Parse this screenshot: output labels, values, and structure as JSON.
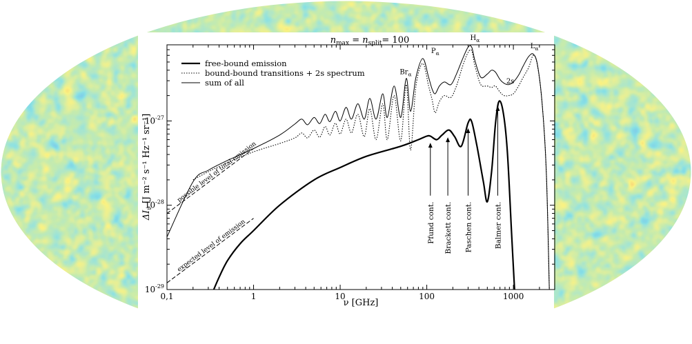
{
  "background": {
    "description_colors": [
      "#1f3fbf",
      "#2e86d6",
      "#3fc0c8",
      "#8fd36a",
      "#f2e33a",
      "#f08a2a",
      "#d22b1f"
    ]
  },
  "chart_data": {
    "type": "line",
    "title": {
      "n_max": "max",
      "n_split": "split",
      "value": "= 100"
    },
    "xlabel": "ν  [GHz]",
    "ylabel": {
      "symbol": "ΔI",
      "sub": "ν",
      "units": "[J m⁻² s⁻¹ Hz⁻¹ sr⁻¹]"
    },
    "xscale": "log",
    "yscale": "log",
    "xlim": [
      0.1,
      3000
    ],
    "ylim": [
      1e-29,
      8e-27
    ],
    "x_ticks": [
      {
        "value": 0.1,
        "label": "0,1"
      },
      {
        "value": 1,
        "label": "1"
      },
      {
        "value": 10,
        "label": "10"
      },
      {
        "value": 100,
        "label": "100"
      },
      {
        "value": 1000,
        "label": "1000"
      }
    ],
    "y_ticks": [
      {
        "value": 1e-29,
        "base": "10",
        "exp": "-29"
      },
      {
        "value": 1e-28,
        "base": "10",
        "exp": "-28"
      },
      {
        "value": 1e-27,
        "base": "10",
        "exp": "-27"
      }
    ],
    "legend": {
      "position": "top-left",
      "entries": [
        {
          "label": "free-bound emission",
          "style": "thick"
        },
        {
          "label": "bound-bound transitions + 2s spectrum",
          "style": "dotted"
        },
        {
          "label": "sum of all",
          "style": "thin"
        }
      ]
    },
    "series": [
      {
        "name": "free-bound emission",
        "style": "thick",
        "x": [
          0.3,
          0.4,
          0.5,
          0.7,
          1,
          2,
          5,
          10,
          20,
          50,
          80,
          100,
          110,
          130,
          150,
          180,
          210,
          250,
          300,
          330,
          380,
          450,
          500,
          560,
          620,
          680,
          760,
          850,
          950,
          1050
        ],
        "y": [
          7e-30,
          1.4e-29,
          2.2e-29,
          3.5e-29,
          5e-29,
          1e-28,
          2e-28,
          2.8e-28,
          3.8e-28,
          5e-28,
          6e-28,
          6.6e-28,
          6.6e-28,
          6e-28,
          6.8e-28,
          7.8e-28,
          6.5e-28,
          5e-28,
          9.5e-28,
          9.8e-28,
          5e-28,
          1.9e-28,
          1.1e-28,
          2.5e-28,
          9e-28,
          1.7e-27,
          1.3e-27,
          4.5e-28,
          5e-29,
          7e-30
        ]
      },
      {
        "name": "bound-bound transitions + 2s spectrum",
        "style": "dotted",
        "x": [
          0.2,
          0.3,
          0.5,
          1,
          2,
          3,
          3.6,
          4.2,
          5,
          5.8,
          6.7,
          7.6,
          8.8,
          10,
          11.7,
          13.5,
          16,
          19,
          22,
          26,
          31,
          35,
          42,
          50,
          58,
          65,
          75,
          90,
          105,
          115,
          125,
          140,
          160,
          190,
          220,
          260,
          300,
          330,
          360,
          420,
          500,
          560,
          620,
          700,
          780,
          880,
          1000,
          1150,
          1300,
          1500,
          1700,
          1900,
          2150,
          2400,
          2600
        ],
        "y": [
          2e-28,
          2.5e-28,
          3.2e-28,
          4.3e-28,
          5.4e-28,
          6.3e-28,
          7.2e-28,
          6.3e-28,
          7.8e-28,
          6.4e-28,
          8.6e-28,
          6.8e-28,
          9.4e-28,
          7e-28,
          1.05e-27,
          7.2e-28,
          1.2e-27,
          6.5e-28,
          1.4e-27,
          6e-28,
          1.6e-27,
          6e-28,
          2e-27,
          5.8e-28,
          2.7e-27,
          4.5e-28,
          2.6e-27,
          4.8e-27,
          2.6e-27,
          1.8e-27,
          1.25e-27,
          1.7e-27,
          2e-27,
          1.9e-27,
          2.6e-27,
          4.5e-27,
          6.5e-27,
          6.8e-27,
          4.5e-27,
          2.7e-27,
          2.6e-27,
          2.5e-27,
          2.6e-27,
          2.2e-27,
          2e-27,
          2e-27,
          2.1e-27,
          2.6e-27,
          3.3e-27,
          4.3e-27,
          6e-27,
          4.5e-27,
          1.6e-27,
          2.5e-28,
          1e-29
        ]
      },
      {
        "name": "sum of all",
        "style": "thin",
        "x": [
          0.1,
          0.2,
          0.3,
          0.5,
          1,
          2,
          3,
          3.6,
          4.2,
          5,
          5.8,
          6.7,
          7.6,
          8.8,
          10,
          11.7,
          13.5,
          16,
          19,
          22,
          26,
          31,
          35,
          42,
          50,
          58,
          65,
          75,
          90,
          105,
          115,
          125,
          140,
          160,
          190,
          220,
          260,
          300,
          330,
          360,
          420,
          500,
          560,
          620,
          700,
          780,
          880,
          1000,
          1150,
          1300,
          1500,
          1700,
          1900,
          2150,
          2400,
          2600
        ],
        "y": [
          4.2e-29,
          1.9e-28,
          2.6e-28,
          3.4e-28,
          4.7e-28,
          6.8e-28,
          9.2e-28,
          1.05e-27,
          9e-28,
          1.1e-27,
          9.3e-28,
          1.2e-27,
          9.8e-28,
          1.3e-27,
          1e-27,
          1.45e-27,
          1.05e-27,
          1.6e-27,
          1.05e-27,
          1.85e-27,
          1.05e-27,
          2.1e-27,
          1.1e-27,
          2.6e-27,
          1.1e-27,
          3.2e-27,
          1.3e-27,
          3.3e-27,
          5.5e-27,
          3.3e-27,
          2.4e-27,
          2.1e-27,
          2.6e-27,
          2.9e-27,
          2.7e-27,
          3.6e-27,
          5.5e-27,
          7.5e-27,
          7.5e-27,
          5.2e-27,
          3.3e-27,
          3.6e-27,
          4e-27,
          3.8e-27,
          3.1e-27,
          2.8e-27,
          2.7e-27,
          2.9e-27,
          3.5e-27,
          4.5e-27,
          5.8e-27,
          6.2e-27,
          4.6e-27,
          1.6e-27,
          2.5e-28,
          1e-29
        ]
      },
      {
        "name": "possible level of total emission",
        "style": "dashed",
        "x": [
          0.1,
          1
        ],
        "y": [
          8e-29,
          4.7e-28
        ]
      },
      {
        "name": "expected level of emission",
        "style": "dashed",
        "x": [
          0.1,
          1
        ],
        "y": [
          1.2e-29,
          7e-29
        ]
      }
    ],
    "peak_labels": [
      {
        "main": "Br",
        "sub": "α",
        "x": 57,
        "y": 3.6e-27
      },
      {
        "main": "P",
        "sub": "α",
        "x": 125,
        "y": 6.4e-27
      },
      {
        "main": "H",
        "sub": "α",
        "x": 360,
        "y": 9.1e-27
      },
      {
        "main": "L",
        "sub": "α",
        "x": 1750,
        "y": 7.3e-27
      },
      {
        "main": "2s",
        "sub": "",
        "x": 920,
        "y": 2.8e-27
      }
    ],
    "continuum_annotations": [
      {
        "label": "Pfund cont.",
        "x": 110,
        "arrow_tip_y": 5.5e-28,
        "arrow_tail_y": 1.3e-28,
        "text_top_y": 1.1e-28
      },
      {
        "label": "Brackett cont.",
        "x": 175,
        "arrow_tip_y": 6.4e-28,
        "arrow_tail_y": 1.3e-28,
        "text_top_y": 1.1e-28
      },
      {
        "label": "Paschen cont.",
        "x": 300,
        "arrow_tip_y": 8.2e-28,
        "arrow_tail_y": 1.3e-28,
        "text_top_y": 1.1e-28
      },
      {
        "label": "Balmer cont.",
        "x": 660,
        "arrow_tip_y": 1.5e-27,
        "arrow_tail_y": 1.3e-28,
        "text_top_y": 1.1e-28
      }
    ],
    "edge_annotations": [
      {
        "label": "possible level of total emission",
        "line": "possible level of total emission"
      },
      {
        "label": "expected level of emission",
        "line": "expected level of emission"
      }
    ]
  }
}
